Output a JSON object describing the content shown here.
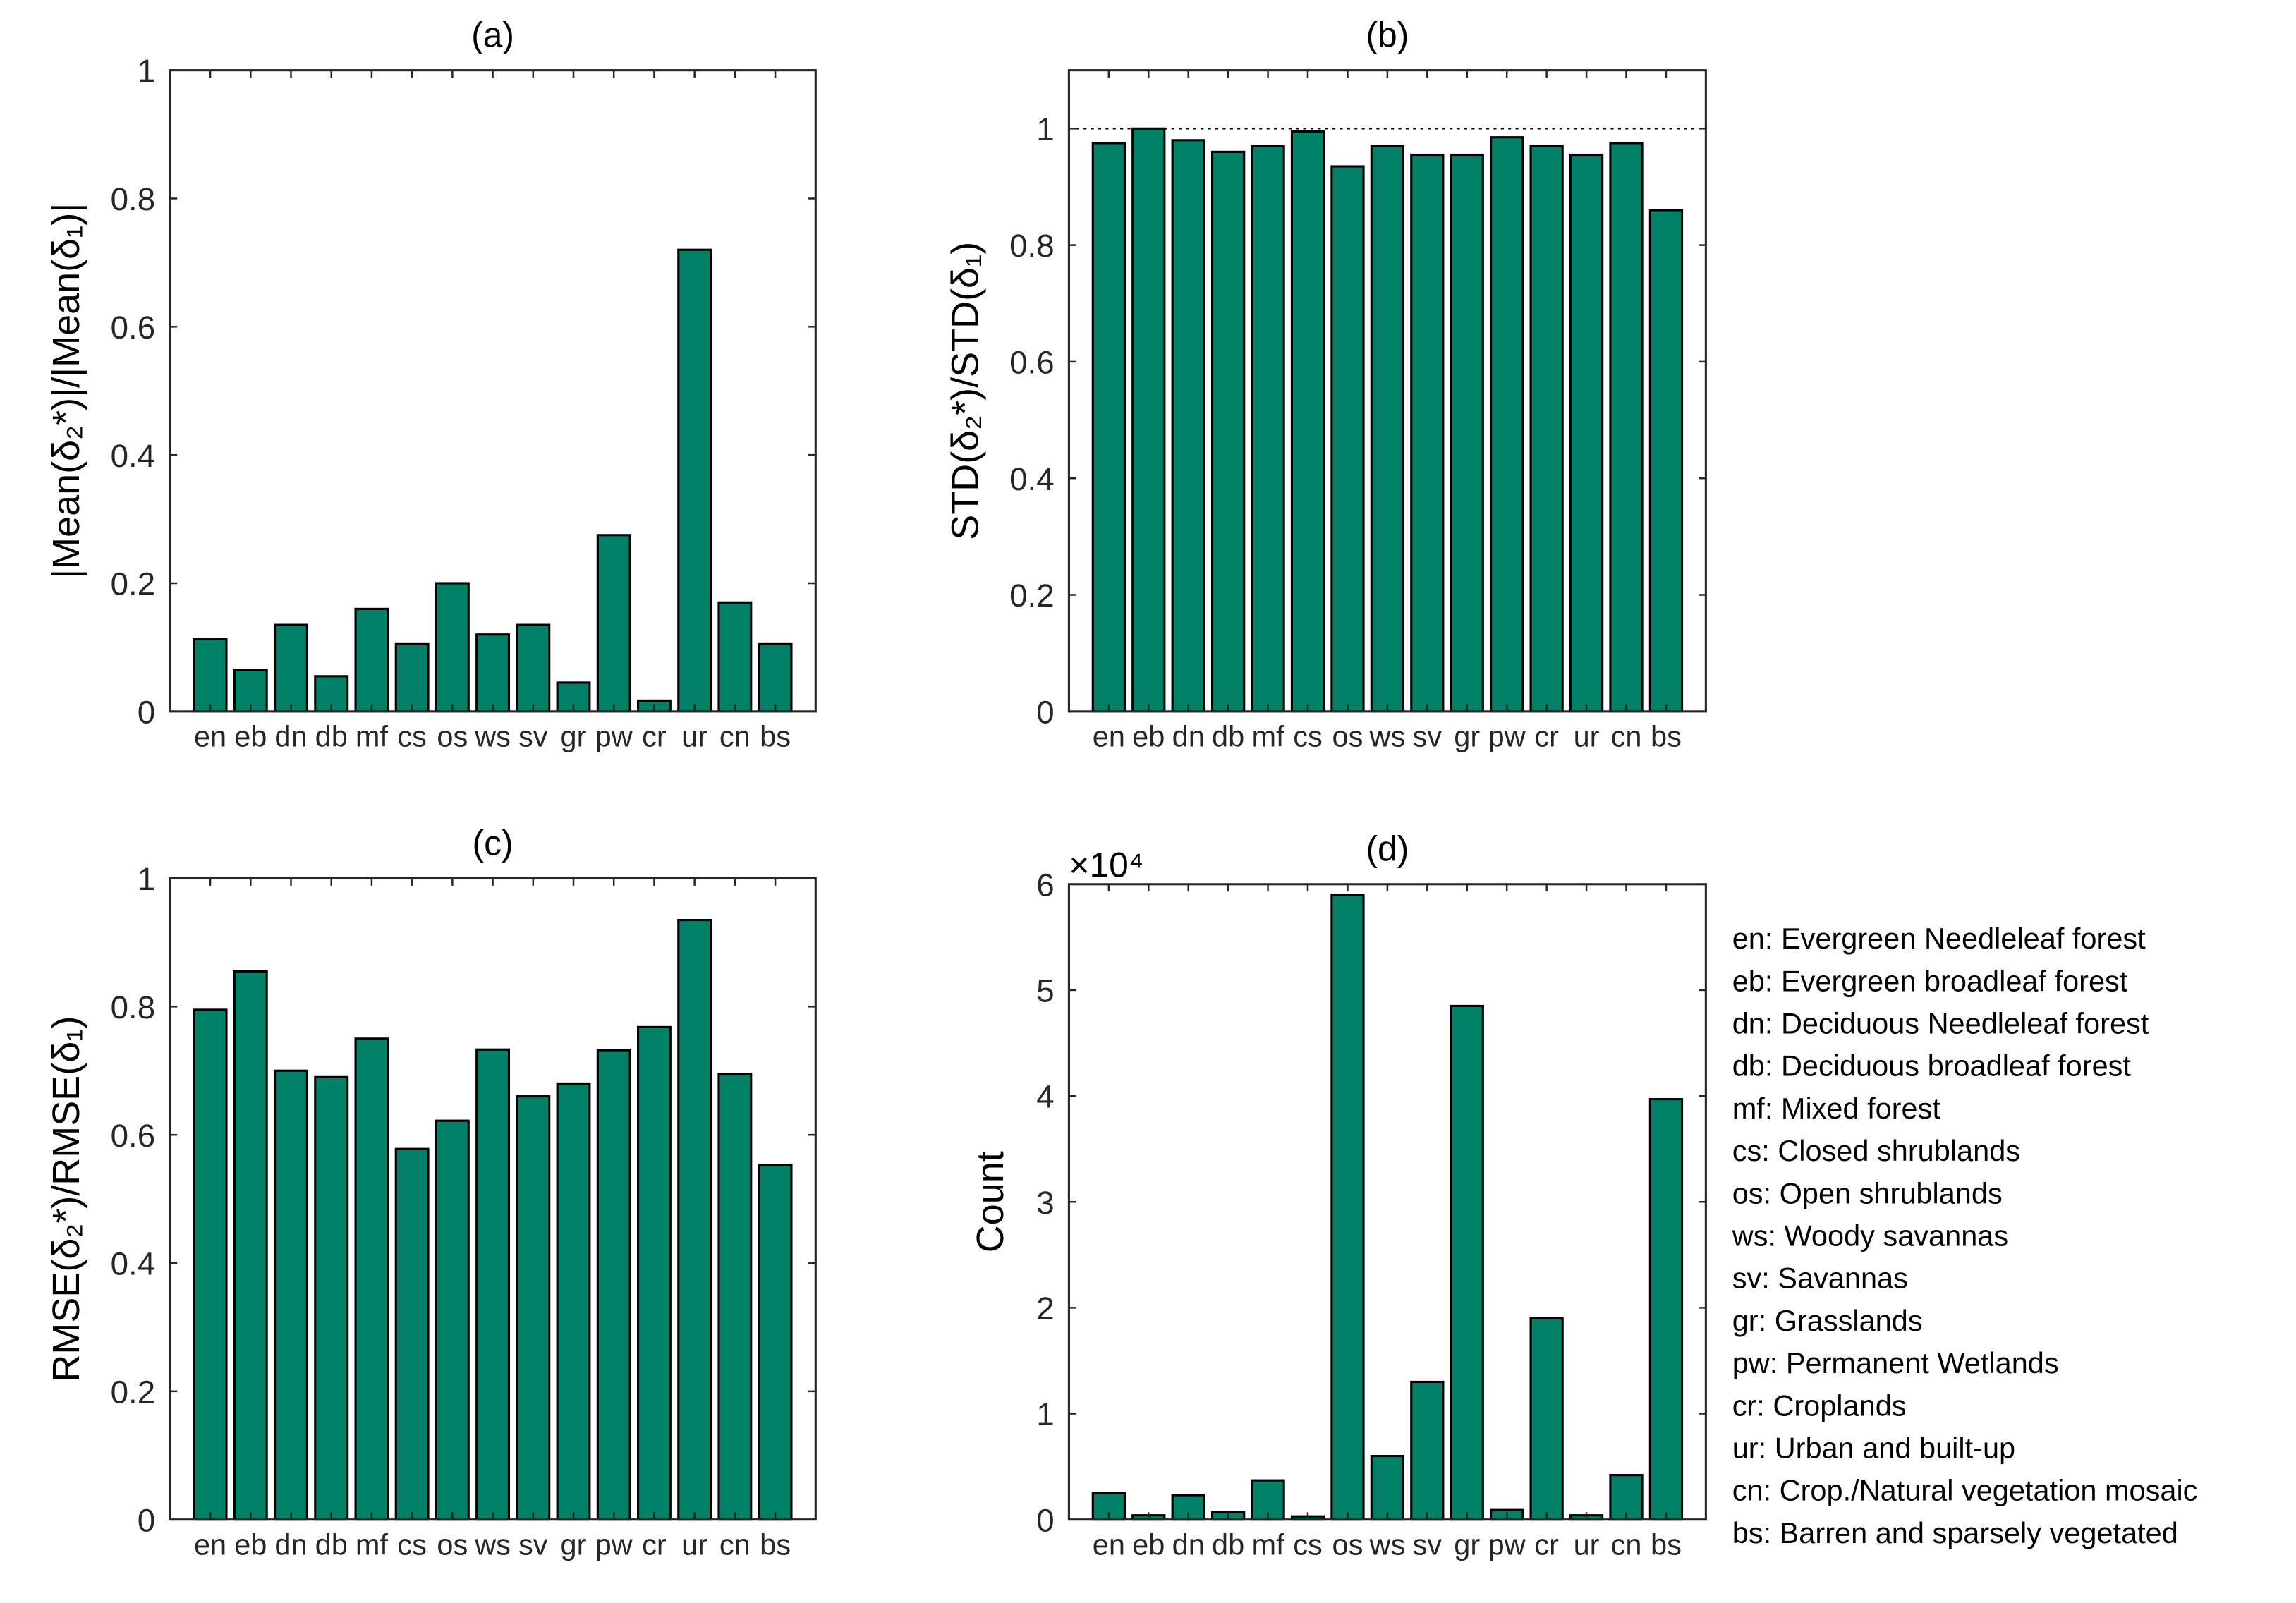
{
  "bar_color": "#008066",
  "categories": [
    "en",
    "eb",
    "dn",
    "db",
    "mf",
    "cs",
    "os",
    "ws",
    "sv",
    "gr",
    "pw",
    "cr",
    "ur",
    "cn",
    "bs"
  ],
  "chart_data": [
    {
      "type": "bar",
      "title": "(a)",
      "ylabel": "|Mean(δ₂*)|/|Mean(δ₁)|",
      "ylim": [
        0,
        1
      ],
      "yticks": [
        0,
        0.2,
        0.4,
        0.6,
        0.8,
        1
      ],
      "ytick_labels": [
        "0",
        "0.2",
        "0.4",
        "0.6",
        "0.8",
        "1"
      ],
      "values": [
        0.113,
        0.065,
        0.135,
        0.055,
        0.16,
        0.105,
        0.2,
        0.12,
        0.135,
        0.045,
        0.275,
        0.017,
        0.72,
        0.17,
        0.105
      ]
    },
    {
      "type": "bar",
      "title": "(b)",
      "ylabel": "STD(δ₂*)/STD(δ₁)",
      "ylim": [
        0,
        1.1
      ],
      "yticks": [
        0,
        0.2,
        0.4,
        0.6,
        0.8,
        1
      ],
      "ytick_labels": [
        "0",
        "0.2",
        "0.4",
        "0.6",
        "0.8",
        "1"
      ],
      "reference_line": 1,
      "values": [
        0.975,
        1.0,
        0.98,
        0.96,
        0.97,
        0.995,
        0.935,
        0.97,
        0.955,
        0.955,
        0.985,
        0.97,
        0.955,
        0.975,
        0.86
      ]
    },
    {
      "type": "bar",
      "title": "(c)",
      "ylabel": "RMSE(δ₂*)/RMSE(δ₁)",
      "ylim": [
        0,
        1
      ],
      "yticks": [
        0,
        0.2,
        0.4,
        0.6,
        0.8,
        1
      ],
      "ytick_labels": [
        "0",
        "0.2",
        "0.4",
        "0.6",
        "0.8",
        "1"
      ],
      "values": [
        0.795,
        0.855,
        0.7,
        0.69,
        0.75,
        0.578,
        0.622,
        0.733,
        0.66,
        0.68,
        0.732,
        0.768,
        0.935,
        0.695,
        0.553
      ]
    },
    {
      "type": "bar",
      "title": "(d)",
      "ylabel": "Count",
      "y_multiplier": "×10⁴",
      "ylim": [
        0,
        6
      ],
      "yticks": [
        0,
        1,
        2,
        3,
        4,
        5,
        6
      ],
      "ytick_labels": [
        "0",
        "1",
        "2",
        "3",
        "4",
        "5",
        "6"
      ],
      "values": [
        0.25,
        0.04,
        0.23,
        0.07,
        0.37,
        0.03,
        5.9,
        0.6,
        1.3,
        4.85,
        0.09,
        1.9,
        0.04,
        0.42,
        3.97
      ]
    }
  ],
  "legend": [
    "en: Evergreen Needleleaf forest",
    "eb: Evergreen broadleaf forest",
    "dn: Deciduous Needleleaf forest",
    "db: Deciduous broadleaf forest",
    "mf: Mixed forest",
    "cs: Closed shrublands",
    "os: Open shrublands",
    "ws: Woody savannas",
    "sv: Savannas",
    "gr: Grasslands",
    "pw: Permanent Wetlands",
    "cr: Croplands",
    "ur: Urban and built-up",
    "cn: Crop./Natural vegetation mosaic",
    "bs: Barren and sparsely vegetated"
  ]
}
